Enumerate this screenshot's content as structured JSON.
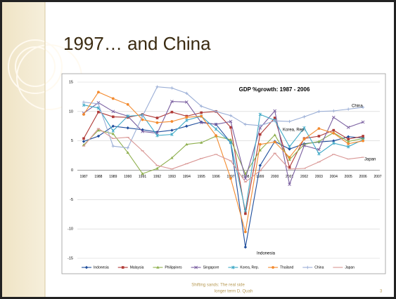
{
  "slide": {
    "title": "1997… and China",
    "footer": [
      "Shifting sands: The real side",
      "longer term    D. Quah"
    ],
    "page": "3"
  },
  "chart_data": {
    "type": "line",
    "title": "GDP %growth: 1987 - 2006",
    "categories": [
      "1987",
      "1988",
      "1989",
      "1990",
      "1991",
      "1992",
      "1993",
      "1994",
      "1995",
      "1996",
      "1997",
      "1998",
      "1999",
      "2000",
      "2001",
      "2002",
      "2003",
      "2004",
      "2005",
      "2006",
      "2007"
    ],
    "ylim": [
      -15,
      15
    ],
    "yticks": [
      -15,
      -10,
      -5,
      0,
      5,
      10,
      15
    ],
    "grid": true,
    "legend": "bottom",
    "annotations": [
      "China",
      "Korea, Rep.",
      "Japan",
      "Indonesia"
    ],
    "series": [
      {
        "name": "Indonesia",
        "color": "#1f4e9c",
        "marker": "diamond",
        "values": [
          4.9,
          5.8,
          7.5,
          7.2,
          6.9,
          6.5,
          6.8,
          7.5,
          8.2,
          7.8,
          4.7,
          -13.1,
          0.8,
          4.9,
          3.6,
          4.5,
          4.8,
          5.0,
          5.7,
          5.5,
          null
        ]
      },
      {
        "name": "Malaysia",
        "color": "#b03a37",
        "marker": "square",
        "values": [
          5.4,
          9.9,
          9.1,
          9.0,
          9.5,
          8.9,
          9.9,
          9.2,
          9.8,
          10.0,
          7.3,
          -7.4,
          6.1,
          8.9,
          0.5,
          5.4,
          5.8,
          6.8,
          5.3,
          5.8,
          null
        ]
      },
      {
        "name": "Philippines",
        "color": "#8fb04f",
        "marker": "triangle",
        "values": [
          4.3,
          6.8,
          6.2,
          3.0,
          -0.6,
          0.3,
          2.1,
          4.4,
          4.7,
          5.8,
          5.2,
          -0.6,
          3.4,
          6.0,
          1.8,
          4.4,
          4.9,
          6.4,
          4.9,
          5.4,
          null
        ]
      },
      {
        "name": "Singapore",
        "color": "#7a5fa0",
        "marker": "cross",
        "values": [
          9.7,
          11.5,
          10.0,
          9.2,
          6.6,
          6.3,
          11.7,
          11.6,
          8.1,
          7.8,
          8.3,
          -1.4,
          7.2,
          10.1,
          -2.4,
          4.2,
          3.5,
          9.0,
          7.3,
          8.2,
          null
        ]
      },
      {
        "name": "Korea, Rep.",
        "color": "#3fa9c6",
        "marker": "star",
        "values": [
          11.1,
          10.6,
          6.7,
          9.2,
          9.4,
          5.9,
          6.1,
          8.5,
          9.2,
          7.0,
          4.7,
          -6.9,
          9.5,
          8.5,
          4.0,
          7.2,
          2.8,
          4.6,
          4.0,
          5.2,
          null
        ]
      },
      {
        "name": "Thailand",
        "color": "#f38a2e",
        "marker": "circle",
        "values": [
          9.5,
          13.3,
          12.2,
          11.2,
          8.6,
          8.1,
          8.3,
          9.0,
          9.2,
          5.9,
          -1.4,
          -10.5,
          4.4,
          4.8,
          2.2,
          5.3,
          7.1,
          6.3,
          4.5,
          5.0,
          null
        ]
      },
      {
        "name": "China",
        "color": "#9aaed6",
        "marker": "plus",
        "values": [
          11.6,
          11.3,
          4.1,
          3.8,
          9.2,
          14.2,
          14.0,
          13.1,
          10.9,
          10.0,
          9.3,
          7.8,
          7.6,
          8.4,
          8.3,
          9.1,
          10.0,
          10.1,
          10.4,
          10.7,
          null
        ]
      },
      {
        "name": "Japan",
        "color": "#d99694",
        "marker": "dash",
        "values": [
          4.1,
          7.1,
          5.4,
          5.6,
          3.3,
          0.8,
          0.2,
          1.1,
          2.0,
          2.7,
          1.6,
          -2.0,
          -0.1,
          2.9,
          0.2,
          0.3,
          1.4,
          2.7,
          1.9,
          2.2,
          null
        ]
      }
    ]
  }
}
